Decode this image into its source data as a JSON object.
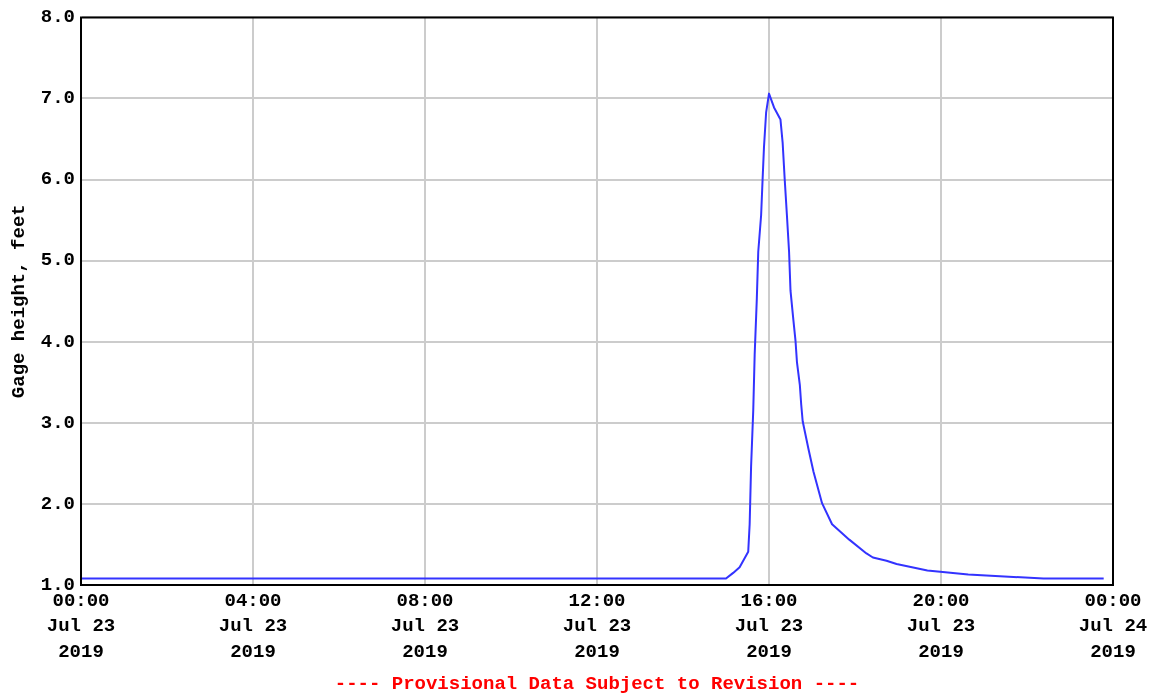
{
  "chart_data": {
    "type": "line",
    "ylabel": "Gage height, feet",
    "annotations": [
      "---- Provisional Data Subject to Revision ----"
    ],
    "x": [
      "2019-07-23T00:00",
      "2019-07-23T15:00",
      "2019-07-23T15:10",
      "2019-07-23T15:19",
      "2019-07-23T15:31",
      "2019-07-23T15:33",
      "2019-07-23T15:35",
      "2019-07-23T15:38",
      "2019-07-23T15:40",
      "2019-07-23T15:43",
      "2019-07-23T15:45",
      "2019-07-23T15:49",
      "2019-07-23T15:51",
      "2019-07-23T15:53",
      "2019-07-23T15:56",
      "2019-07-23T16:00",
      "2019-07-23T16:07",
      "2019-07-23T16:16",
      "2019-07-23T16:19",
      "2019-07-23T16:22",
      "2019-07-23T16:25",
      "2019-07-23T16:28",
      "2019-07-23T16:30",
      "2019-07-23T16:34",
      "2019-07-23T16:37",
      "2019-07-23T16:39",
      "2019-07-23T16:43",
      "2019-07-23T16:45",
      "2019-07-23T16:47",
      "2019-07-23T16:55",
      "2019-07-23T17:02",
      "2019-07-23T17:14",
      "2019-07-23T17:28",
      "2019-07-23T17:52",
      "2019-07-23T18:16",
      "2019-07-23T18:25",
      "2019-07-23T18:44",
      "2019-07-23T18:58",
      "2019-07-23T19:41",
      "2019-07-23T20:38",
      "2019-07-23T21:41",
      "2019-07-23T22:23",
      "2019-07-23T23:47"
    ],
    "series": [
      {
        "color": "#3333ff",
        "values": [
          1.08,
          1.08,
          1.15,
          1.22,
          1.41,
          1.75,
          2.46,
          3.15,
          3.84,
          4.53,
          5.11,
          5.56,
          5.99,
          6.4,
          6.83,
          7.06,
          6.89,
          6.74,
          6.46,
          5.99,
          5.56,
          5.11,
          4.63,
          4.27,
          4.01,
          3.75,
          3.47,
          3.22,
          3.02,
          2.68,
          2.4,
          2.01,
          1.75,
          1.56,
          1.39,
          1.34,
          1.3,
          1.26,
          1.18,
          1.13,
          1.1,
          1.08,
          1.08
        ]
      }
    ],
    "xlim": [
      "2019-07-23T00:00",
      "2019-07-24T00:00"
    ],
    "xticks": [
      {
        "value": "2019-07-23T00:00",
        "label": "00:00\nJul 23\n2019"
      },
      {
        "value": "2019-07-23T04:00",
        "label": "04:00\nJul 23\n2019"
      },
      {
        "value": "2019-07-23T08:00",
        "label": "08:00\nJul 23\n2019"
      },
      {
        "value": "2019-07-23T12:00",
        "label": "12:00\nJul 23\n2019"
      },
      {
        "value": "2019-07-23T16:00",
        "label": "16:00\nJul 23\n2019"
      },
      {
        "value": "2019-07-23T20:00",
        "label": "20:00\nJul 23\n2019"
      },
      {
        "value": "2019-07-24T00:00",
        "label": "00:00\nJul 24\n2019"
      }
    ],
    "ylim": [
      1,
      8
    ],
    "yticks": [
      {
        "value": 1,
        "label": "1.0"
      },
      {
        "value": 2,
        "label": "2.0"
      },
      {
        "value": 3,
        "label": "3.0"
      },
      {
        "value": 4,
        "label": "4.0"
      },
      {
        "value": 5,
        "label": "5.0"
      },
      {
        "value": 6,
        "label": "6.0"
      },
      {
        "value": 7,
        "label": "7.0"
      },
      {
        "value": 8,
        "label": "8.0"
      }
    ],
    "grid": true,
    "legend": false,
    "marker": "none",
    "line_style": "solid"
  }
}
